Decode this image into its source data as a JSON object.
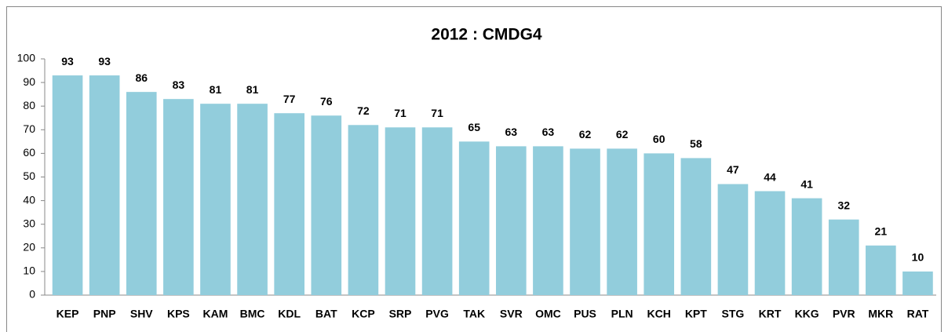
{
  "chart_data": {
    "type": "bar",
    "title": "2012 : CMDG4",
    "categories": [
      "KEP",
      "PNP",
      "SHV",
      "KPS",
      "KAM",
      "BMC",
      "KDL",
      "BAT",
      "KCP",
      "SRP",
      "PVG",
      "TAK",
      "SVR",
      "OMC",
      "PUS",
      "PLN",
      "KCH",
      "KPT",
      "STG",
      "KRT",
      "KKG",
      "PVR",
      "MKR",
      "RAT"
    ],
    "values": [
      93,
      93,
      86,
      83,
      81,
      81,
      77,
      76,
      72,
      71,
      71,
      65,
      63,
      63,
      62,
      62,
      60,
      58,
      47,
      44,
      41,
      32,
      21,
      10
    ],
    "color": "#92cddc",
    "ylim": [
      0,
      100
    ],
    "yticks": [
      0,
      10,
      20,
      30,
      40,
      50,
      60,
      70,
      80,
      90,
      100
    ],
    "grid": false
  }
}
